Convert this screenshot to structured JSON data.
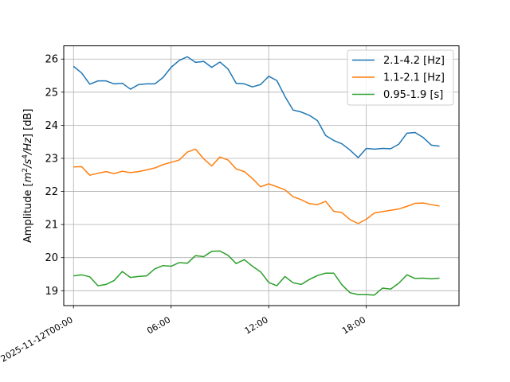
{
  "chart_data": {
    "type": "line",
    "title": "",
    "xlabel": "",
    "ylabel": "Amplitude [m²/s⁴/Hz] [dB]",
    "ylabel_parts": {
      "pre": "Amplitude [",
      "m": "m",
      "m_exp": "2",
      "s": "/s",
      "s_exp": "4",
      "hz": "/Hz",
      "post": "] [dB]"
    },
    "xlim": [
      -0.6,
      23.7
    ],
    "ylim": [
      18.55,
      26.4
    ],
    "grid": true,
    "legend_position": "upper right",
    "x_tick_values": [
      0,
      6,
      12,
      18
    ],
    "x_tick_labels": [
      "2025-11-12T00:00",
      "06:00",
      "12:00",
      "18:00"
    ],
    "y_tick_values": [
      19,
      20,
      21,
      22,
      23,
      24,
      25,
      26
    ],
    "y_tick_labels": [
      "19",
      "20",
      "21",
      "22",
      "23",
      "24",
      "25",
      "26"
    ],
    "x": [
      0,
      0.5,
      1,
      1.5,
      2,
      2.5,
      3,
      3.5,
      4,
      4.5,
      5,
      5.5,
      6,
      6.5,
      7,
      7.5,
      8,
      8.5,
      9,
      9.5,
      10,
      10.5,
      11,
      11.5,
      12,
      12.5,
      13,
      13.5,
      14,
      14.5,
      15,
      15.5,
      16,
      16.5,
      17,
      17.5,
      18,
      18.5,
      19,
      19.5,
      20,
      20.5,
      21,
      21.5,
      22,
      22.5
    ],
    "series": [
      {
        "name": "2.1-4.2 [Hz]",
        "color": "#1f77b4",
        "values": [
          25.78,
          25.58,
          25.24,
          25.34,
          25.34,
          25.25,
          25.27,
          25.09,
          25.23,
          25.25,
          25.25,
          25.44,
          25.75,
          25.96,
          26.07,
          25.9,
          25.93,
          25.75,
          25.91,
          25.7,
          25.27,
          25.25,
          25.16,
          25.23,
          25.48,
          25.35,
          24.87,
          24.46,
          24.4,
          24.3,
          24.14,
          23.69,
          23.54,
          23.44,
          23.25,
          23.02,
          23.3,
          23.28,
          23.3,
          23.29,
          23.43,
          23.76,
          23.78,
          23.63,
          23.4,
          23.37
        ]
      },
      {
        "name": "1.1-2.1 [Hz]",
        "color": "#ff7f0e",
        "values": [
          22.74,
          22.75,
          22.49,
          22.55,
          22.6,
          22.54,
          22.61,
          22.57,
          22.6,
          22.65,
          22.71,
          22.81,
          22.88,
          22.95,
          23.19,
          23.28,
          22.99,
          22.77,
          23.04,
          22.95,
          22.68,
          22.6,
          22.39,
          22.14,
          22.23,
          22.14,
          22.05,
          21.84,
          21.75,
          21.63,
          21.6,
          21.7,
          21.4,
          21.36,
          21.15,
          21.03,
          21.16,
          21.35,
          21.39,
          21.43,
          21.47,
          21.55,
          21.64,
          21.65,
          21.6,
          21.56
        ]
      },
      {
        "name": "0.95-1.9 [s]",
        "color": "#2ca02c",
        "values": [
          19.45,
          19.48,
          19.42,
          19.15,
          19.19,
          19.31,
          19.58,
          19.4,
          19.43,
          19.45,
          19.66,
          19.76,
          19.74,
          19.85,
          19.83,
          20.06,
          20.03,
          20.19,
          20.2,
          20.07,
          19.82,
          19.94,
          19.74,
          19.57,
          19.25,
          19.15,
          19.43,
          19.24,
          19.19,
          19.34,
          19.46,
          19.53,
          19.53,
          19.18,
          18.94,
          18.88,
          18.88,
          18.87,
          19.08,
          19.05,
          19.23,
          19.48,
          19.37,
          19.38,
          19.36,
          19.38
        ]
      }
    ]
  }
}
